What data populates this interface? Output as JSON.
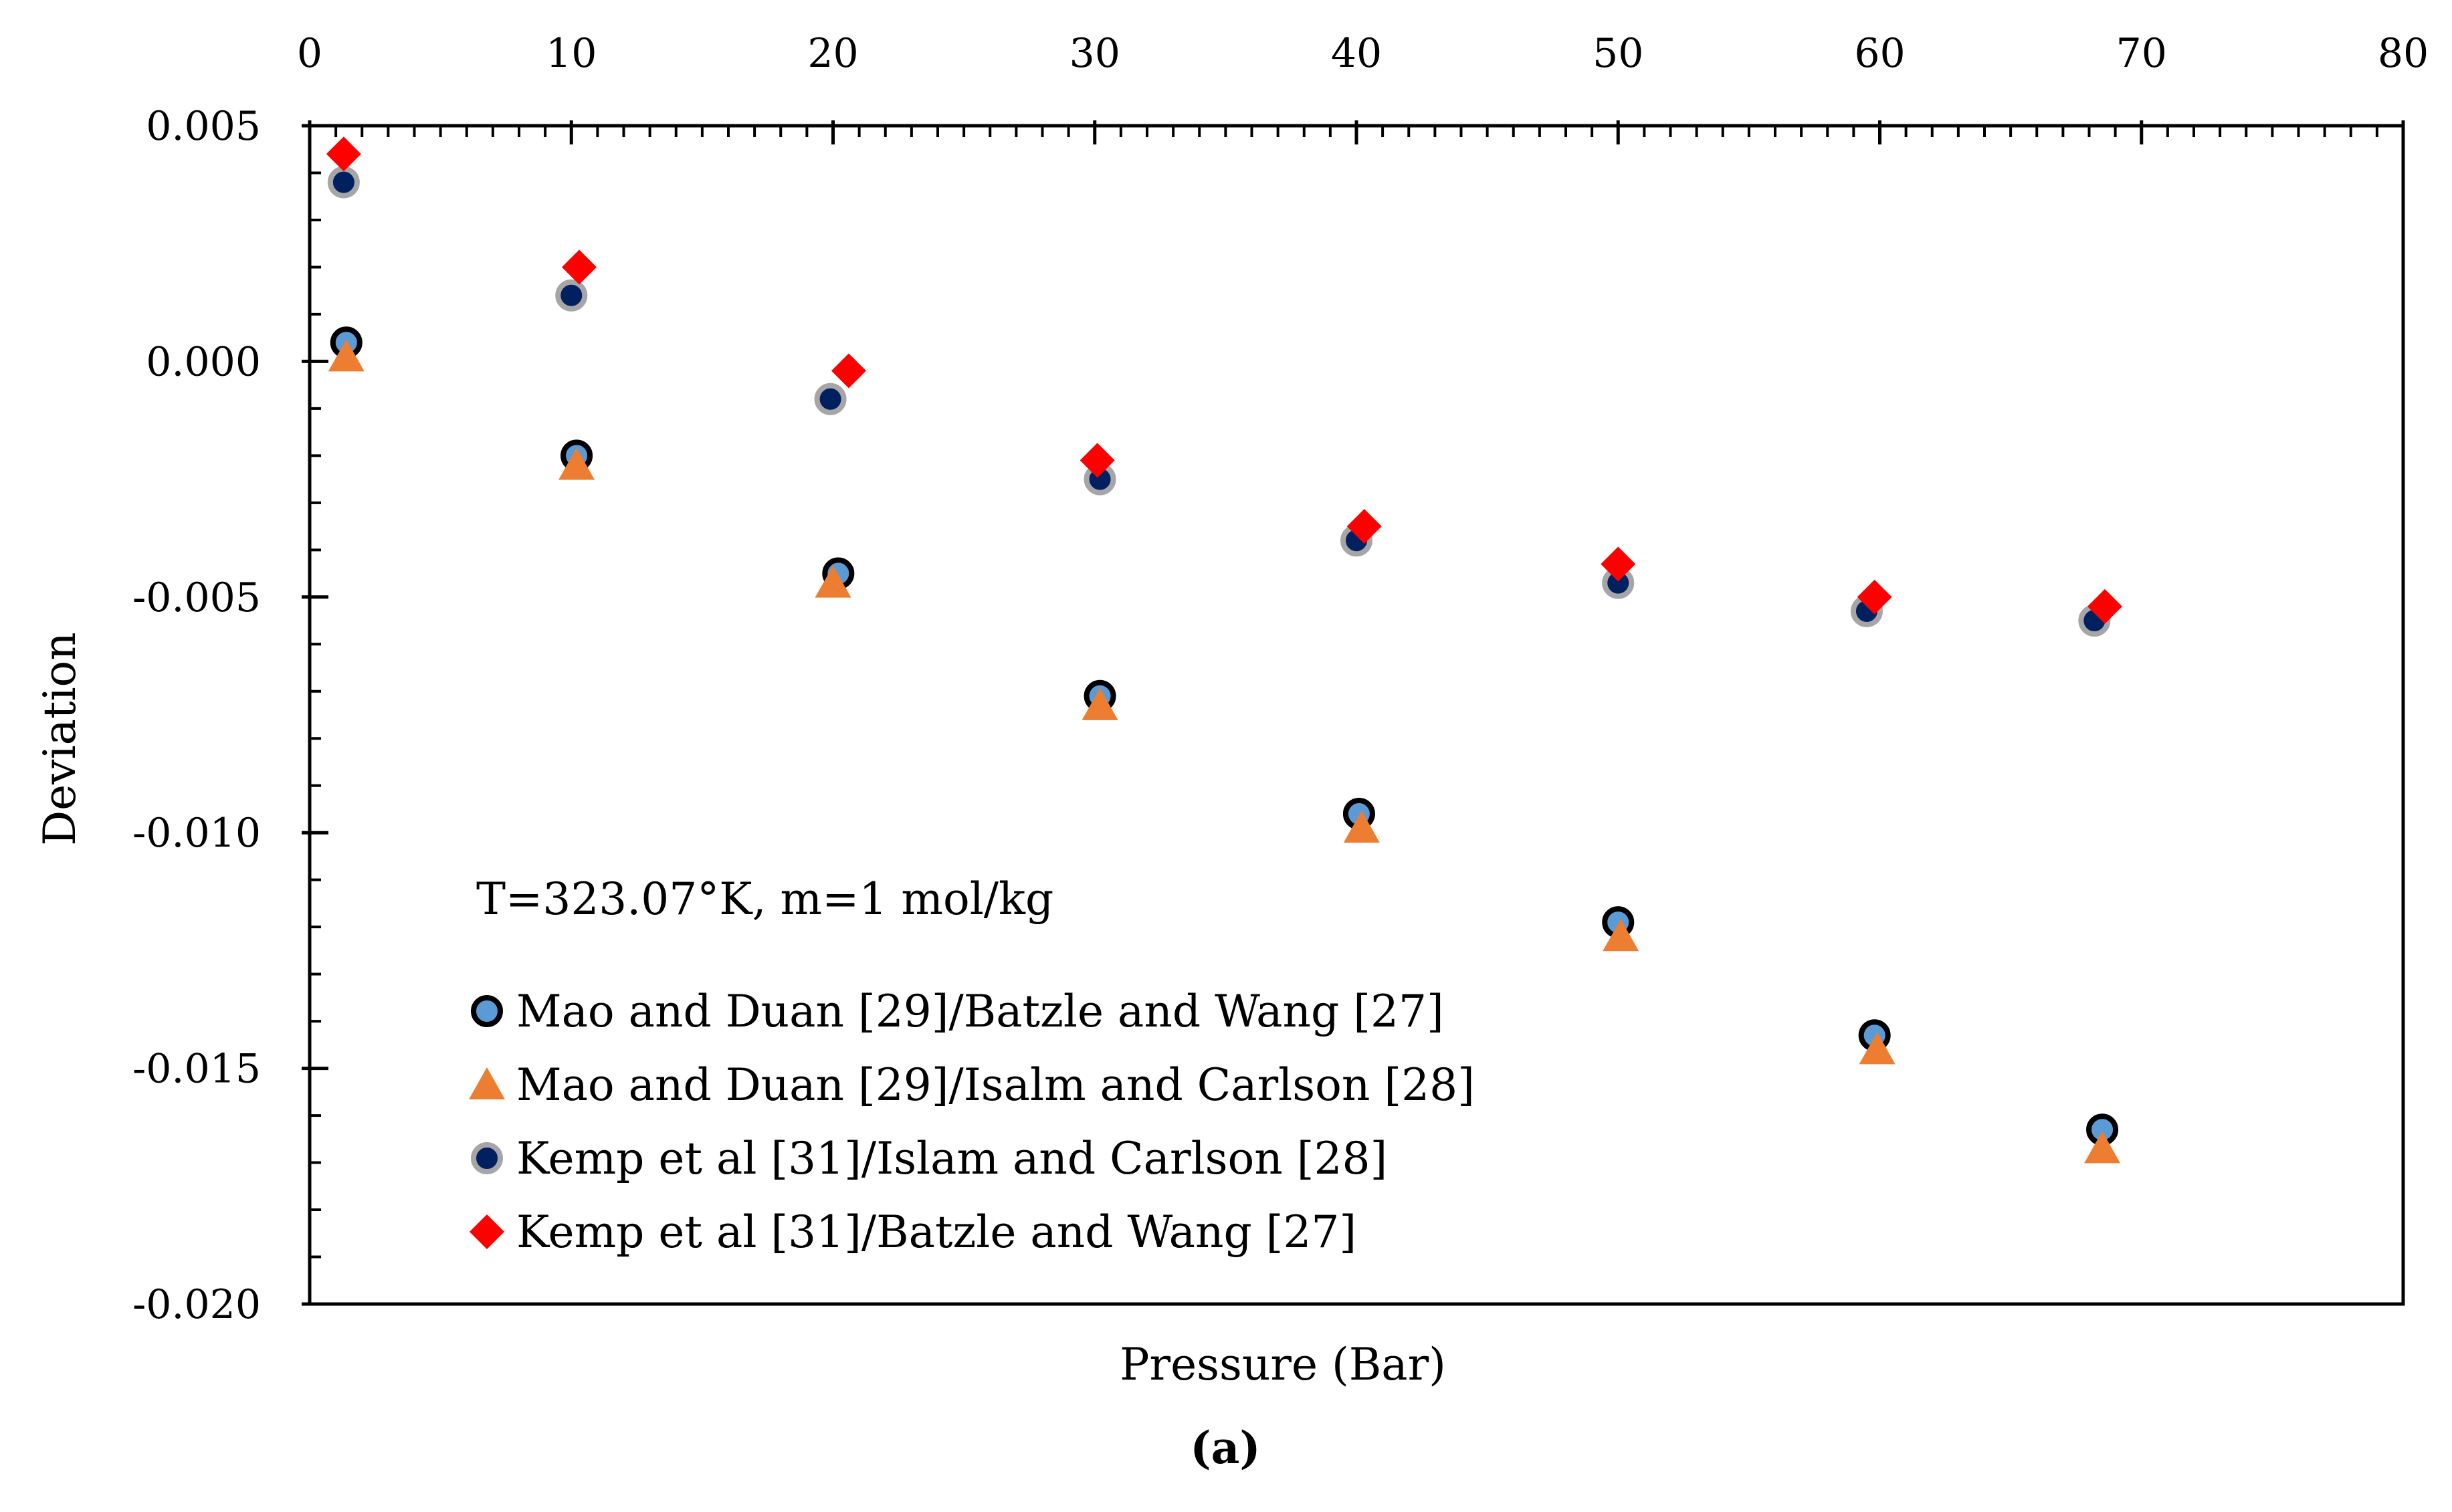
{
  "chart_data": {
    "type": "scatter",
    "title": "",
    "xlabel": "Pressure (Bar)",
    "ylabel": "Deviation",
    "xlim": [
      0,
      80
    ],
    "ylim": [
      -0.02,
      0.005
    ],
    "xticks": [
      0,
      10,
      20,
      30,
      40,
      50,
      60,
      70,
      80
    ],
    "xtick_labels": [
      "0",
      "10",
      "20",
      "30",
      "40",
      "50",
      "60",
      "70",
      "80"
    ],
    "yticks": [
      0.005,
      0.0,
      -0.005,
      -0.01,
      -0.015,
      -0.02
    ],
    "ytick_labels": [
      "0.005",
      "0.000",
      "-0.005",
      "-0.010",
      "-0.015",
      "-0.020"
    ],
    "x_axis_position": "top",
    "grid": false,
    "legend_position": "bottom-left",
    "annotation": "T=323.07°K, m=1 mol/kg",
    "caption": "(a)",
    "series": [
      {
        "name": "Mao and Duan [29]/Batzle and Wang [27]",
        "marker": "circle",
        "color": "#5b9bd5",
        "edge_color": "#000000",
        "x": [
          1.4,
          10.2,
          20.2,
          30.2,
          40.1,
          50.0,
          59.8,
          68.5
        ],
        "y": [
          0.0004,
          -0.002,
          -0.0045,
          -0.0071,
          -0.0096,
          -0.0119,
          -0.0143,
          -0.0163
        ]
      },
      {
        "name": "Mao and Duan [29]/Isalm and Carlson [28]",
        "marker": "triangle",
        "color": "#ed7d31",
        "x": [
          1.4,
          10.2,
          20.0,
          30.2,
          40.2,
          50.1,
          59.9,
          68.5
        ],
        "y": [
          0.0001,
          -0.0022,
          -0.0047,
          -0.0073,
          -0.0099,
          -0.0122,
          -0.0146,
          -0.0167
        ]
      },
      {
        "name": "Kemp et al [31]/Islam and Carlson [28]",
        "marker": "circle",
        "color": "#002060",
        "edge_color": "#a6a6a6",
        "x": [
          1.3,
          10.0,
          19.9,
          30.2,
          40.0,
          50.0,
          59.5,
          68.2
        ],
        "y": [
          0.0038,
          0.0014,
          -0.0008,
          -0.0025,
          -0.0038,
          -0.0047,
          -0.0053,
          -0.0055
        ]
      },
      {
        "name": "Kemp et al [31]/Batzle and Wang [27]",
        "marker": "diamond",
        "color": "#ff0000",
        "x": [
          1.3,
          10.3,
          20.6,
          30.1,
          40.3,
          50.0,
          59.8,
          68.6
        ],
        "y": [
          0.0044,
          0.002,
          -0.0002,
          -0.0021,
          -0.0035,
          -0.0043,
          -0.005,
          -0.0052
        ]
      }
    ]
  }
}
